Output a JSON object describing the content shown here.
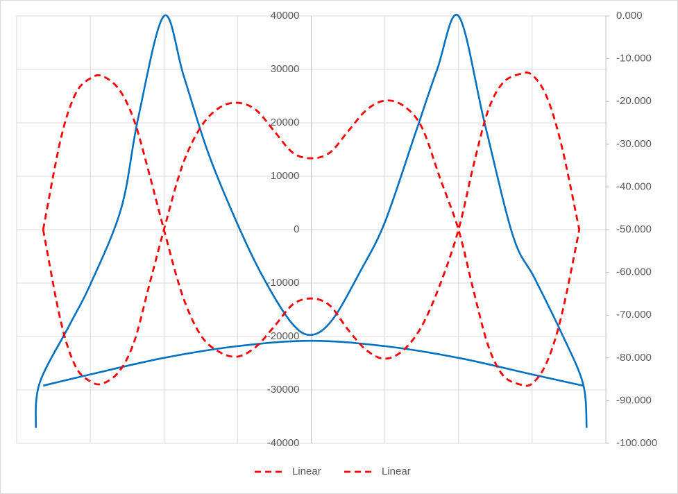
{
  "chart_data": {
    "type": "line",
    "xlim": [
      -4,
      4
    ],
    "xticks": [
      -4,
      -3,
      -2,
      -1,
      0,
      1,
      2,
      3,
      4
    ],
    "ylim": [
      -40000,
      40000
    ],
    "yticks": [
      -40000,
      -30000,
      -20000,
      -10000,
      0,
      10000,
      20000,
      30000,
      40000
    ],
    "y2lim": [
      -100,
      0
    ],
    "y2ticks": [
      {
        "value": -100,
        "label": "-100.000"
      },
      {
        "value": -90,
        "label": "-90.000"
      },
      {
        "value": -80,
        "label": "-80.000"
      },
      {
        "value": -70,
        "label": "-70.000"
      },
      {
        "value": -60,
        "label": "-60.000"
      },
      {
        "value": -50,
        "label": "-50.000"
      },
      {
        "value": -40,
        "label": "-40.000"
      },
      {
        "value": -30,
        "label": "-30.000"
      },
      {
        "value": -20,
        "label": "-20.000"
      },
      {
        "value": -10,
        "label": "-10.000"
      },
      {
        "value": 0,
        "label": "0.000"
      }
    ],
    "grid": true,
    "legend": "bottom",
    "series": [
      {
        "color": "#0070c0",
        "dashed": false,
        "x": [
          -3.74,
          -3.69,
          -3.29,
          -3.0,
          -2.58,
          -2.35,
          -2.0,
          -1.73,
          -1.4,
          -1.0,
          -0.65,
          -0.27,
          0,
          0.29,
          0.67,
          1.0,
          1.42,
          1.71,
          2.0,
          2.36,
          2.74,
          3.03,
          3.4,
          3.69,
          3.74
        ],
        "values": [
          -37100,
          -28800,
          -18050,
          -10260,
          4000,
          20900,
          40000,
          28700,
          14400,
          1000,
          -9000,
          -17400,
          -19700,
          -16800,
          -7700,
          1400,
          18300,
          30000,
          40000,
          19600,
          -1200,
          -9000,
          -19400,
          -28800,
          -37100
        ]
      },
      {
        "color": "#0070c0",
        "dashed": false,
        "x": [
          -3.64,
          -3.0,
          -2.0,
          -1.0,
          0,
          1.0,
          2.0,
          3.0,
          3.69
        ],
        "values": [
          -29200,
          -27100,
          -24000,
          -21800,
          -20800,
          -21800,
          -24000,
          -27100,
          -29200
        ]
      },
      {
        "name": "Linear",
        "color": "#ff0000",
        "dashed": true,
        "axis": "y2",
        "x": [
          -3.64,
          -3.4,
          -3.2,
          -3.0,
          -2.83,
          -2.6,
          -2.4,
          -2.2,
          -2.0,
          -1.75,
          -1.5,
          -1.25,
          -1.0,
          -0.75,
          -0.5,
          -0.25,
          0,
          0.25,
          0.5,
          0.75,
          1.0,
          1.25,
          1.5,
          1.75,
          2.0,
          2.2,
          2.4,
          2.6,
          2.83,
          3.0,
          3.2,
          3.4,
          3.64
        ],
        "values": [
          -50,
          -28.7,
          -18.2,
          -14.6,
          -14.1,
          -17.4,
          -24.7,
          -36.9,
          -50,
          -65.3,
          -74.7,
          -78.6,
          -79.7,
          -77.4,
          -72.6,
          -67.5,
          -66.1,
          -67.7,
          -73.4,
          -78.2,
          -80.2,
          -78.2,
          -72.6,
          -62.8,
          -50,
          -35.2,
          -22.2,
          -15.7,
          -13.6,
          -13.8,
          -19,
          -30.4,
          -50
        ]
      },
      {
        "name": "Linear",
        "color": "#ff0000",
        "dashed": true,
        "axis": "y2",
        "x": [
          -3.64,
          -3.4,
          -3.2,
          -3.0,
          -2.83,
          -2.6,
          -2.4,
          -2.2,
          -2.0,
          -1.75,
          -1.5,
          -1.25,
          -1.0,
          -0.75,
          -0.5,
          -0.25,
          0,
          0.25,
          0.5,
          0.75,
          1.0,
          1.25,
          1.5,
          1.75,
          2.0,
          2.2,
          2.4,
          2.6,
          2.83,
          3.0,
          3.2,
          3.4,
          3.64
        ],
        "values": [
          -50,
          -71.5,
          -82,
          -85.5,
          -86,
          -83,
          -76,
          -63,
          -50,
          -35,
          -26,
          -21.5,
          -20.3,
          -22,
          -27,
          -32,
          -33.3,
          -32,
          -27,
          -22,
          -19.8,
          -21,
          -26,
          -38,
          -50,
          -64,
          -77,
          -84,
          -86.2,
          -86,
          -81,
          -70,
          -50
        ]
      }
    ]
  }
}
